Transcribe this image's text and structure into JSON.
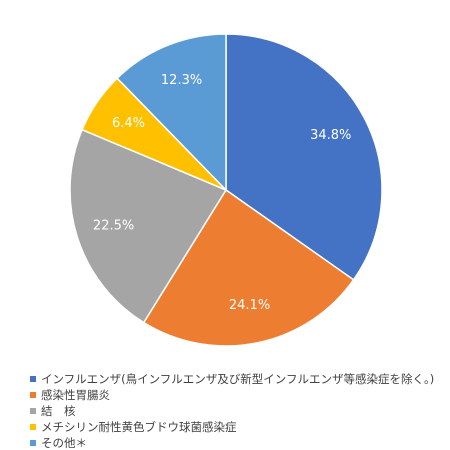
{
  "chart_data": {
    "type": "pie",
    "title": "",
    "start_angle": 0,
    "direction": "clockwise",
    "legend_position": "bottom-left",
    "slices": [
      {
        "name": "インフルエンザ(鳥インフルエンザ及び新型インフルエンザ等感染症を除く。)",
        "value": 34.8,
        "label": "34.8%",
        "color": "#4472c4"
      },
      {
        "name": "感染性胃腸炎",
        "value": 24.1,
        "label": "24.1%",
        "color": "#ed7d31"
      },
      {
        "name": "結　核",
        "value": 22.5,
        "label": "22.5%",
        "color": "#a5a5a5"
      },
      {
        "name": "メチシリン耐性黄色ブドウ球菌感染症",
        "value": 6.4,
        "label": "6.4%",
        "color": "#ffc000"
      },
      {
        "name": "その他＊",
        "value": 12.3,
        "label": "12.3%",
        "color": "#5b9bd5"
      }
    ]
  }
}
